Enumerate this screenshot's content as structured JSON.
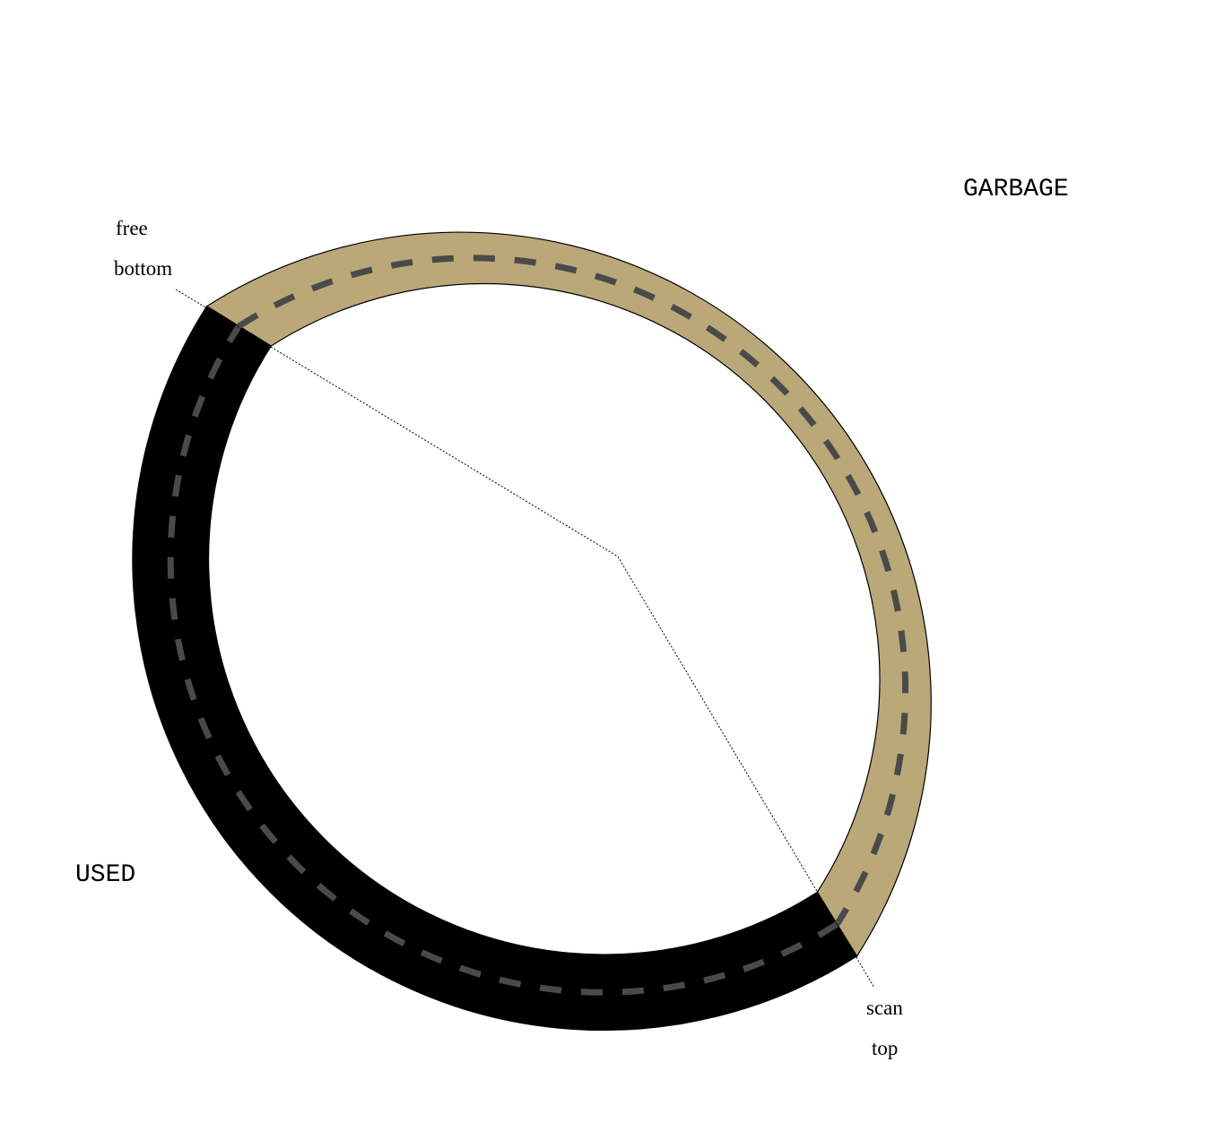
{
  "segments": {
    "garbage": {
      "label": "GARBAGE",
      "color": "#BBA878"
    },
    "used": {
      "label": "USED",
      "color": "#000000"
    }
  },
  "track_dash_color": "#4a4a4a",
  "pointers": {
    "free_bottom": {
      "line1": "free",
      "line2": "bottom"
    },
    "scan_top": {
      "line1": "scan",
      "line2": "top"
    }
  }
}
